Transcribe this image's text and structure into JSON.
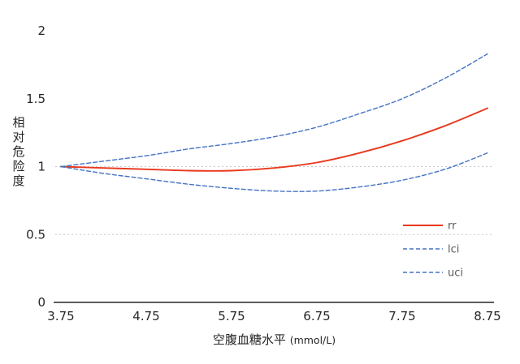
{
  "chart_data": {
    "type": "line",
    "title": "",
    "xlabel_cn": "空腹血糖水平",
    "xlabel_unit": "(mmol/L)",
    "ylabel": "相对危险度",
    "xlim": [
      3.75,
      8.75
    ],
    "ylim": [
      0,
      2
    ],
    "xtick_labels": [
      "3.75",
      "4.75",
      "5.75",
      "6.75",
      "7.75",
      "8.75"
    ],
    "xtick_values": [
      3.75,
      4.75,
      5.75,
      6.75,
      7.75,
      8.75
    ],
    "ytick_labels": [
      "0",
      "0.5",
      "1",
      "1.5",
      "2"
    ],
    "ytick_values": [
      0,
      0.5,
      1,
      1.5,
      2
    ],
    "gridlines_y": [
      0.5,
      1
    ],
    "grid": "horizontal dashed gridlines at y=0.5 and y=1",
    "legend_position": "right-middle",
    "x": [
      3.75,
      4.25,
      4.75,
      5.25,
      5.75,
      6.25,
      6.75,
      7.25,
      7.75,
      8.25,
      8.75
    ],
    "series": [
      {
        "name": "rr",
        "color": "#e8391d",
        "dash": "solid",
        "values": [
          1.0,
          0.99,
          0.98,
          0.97,
          0.97,
          0.99,
          1.03,
          1.1,
          1.19,
          1.3,
          1.43
        ]
      },
      {
        "name": "lci",
        "color": "#4472c4",
        "dash": "dashed",
        "values": [
          1.0,
          0.95,
          0.91,
          0.87,
          0.84,
          0.82,
          0.82,
          0.85,
          0.9,
          0.98,
          1.1
        ]
      },
      {
        "name": "uci",
        "color": "#4472c4",
        "dash": "dashed",
        "values": [
          1.0,
          1.04,
          1.08,
          1.13,
          1.17,
          1.22,
          1.29,
          1.39,
          1.5,
          1.65,
          1.83
        ]
      }
    ],
    "colors": {
      "axis": "#262626",
      "tick_text": "#262626",
      "gridline": "#c9c9c9",
      "legend_text": "#595959"
    }
  }
}
